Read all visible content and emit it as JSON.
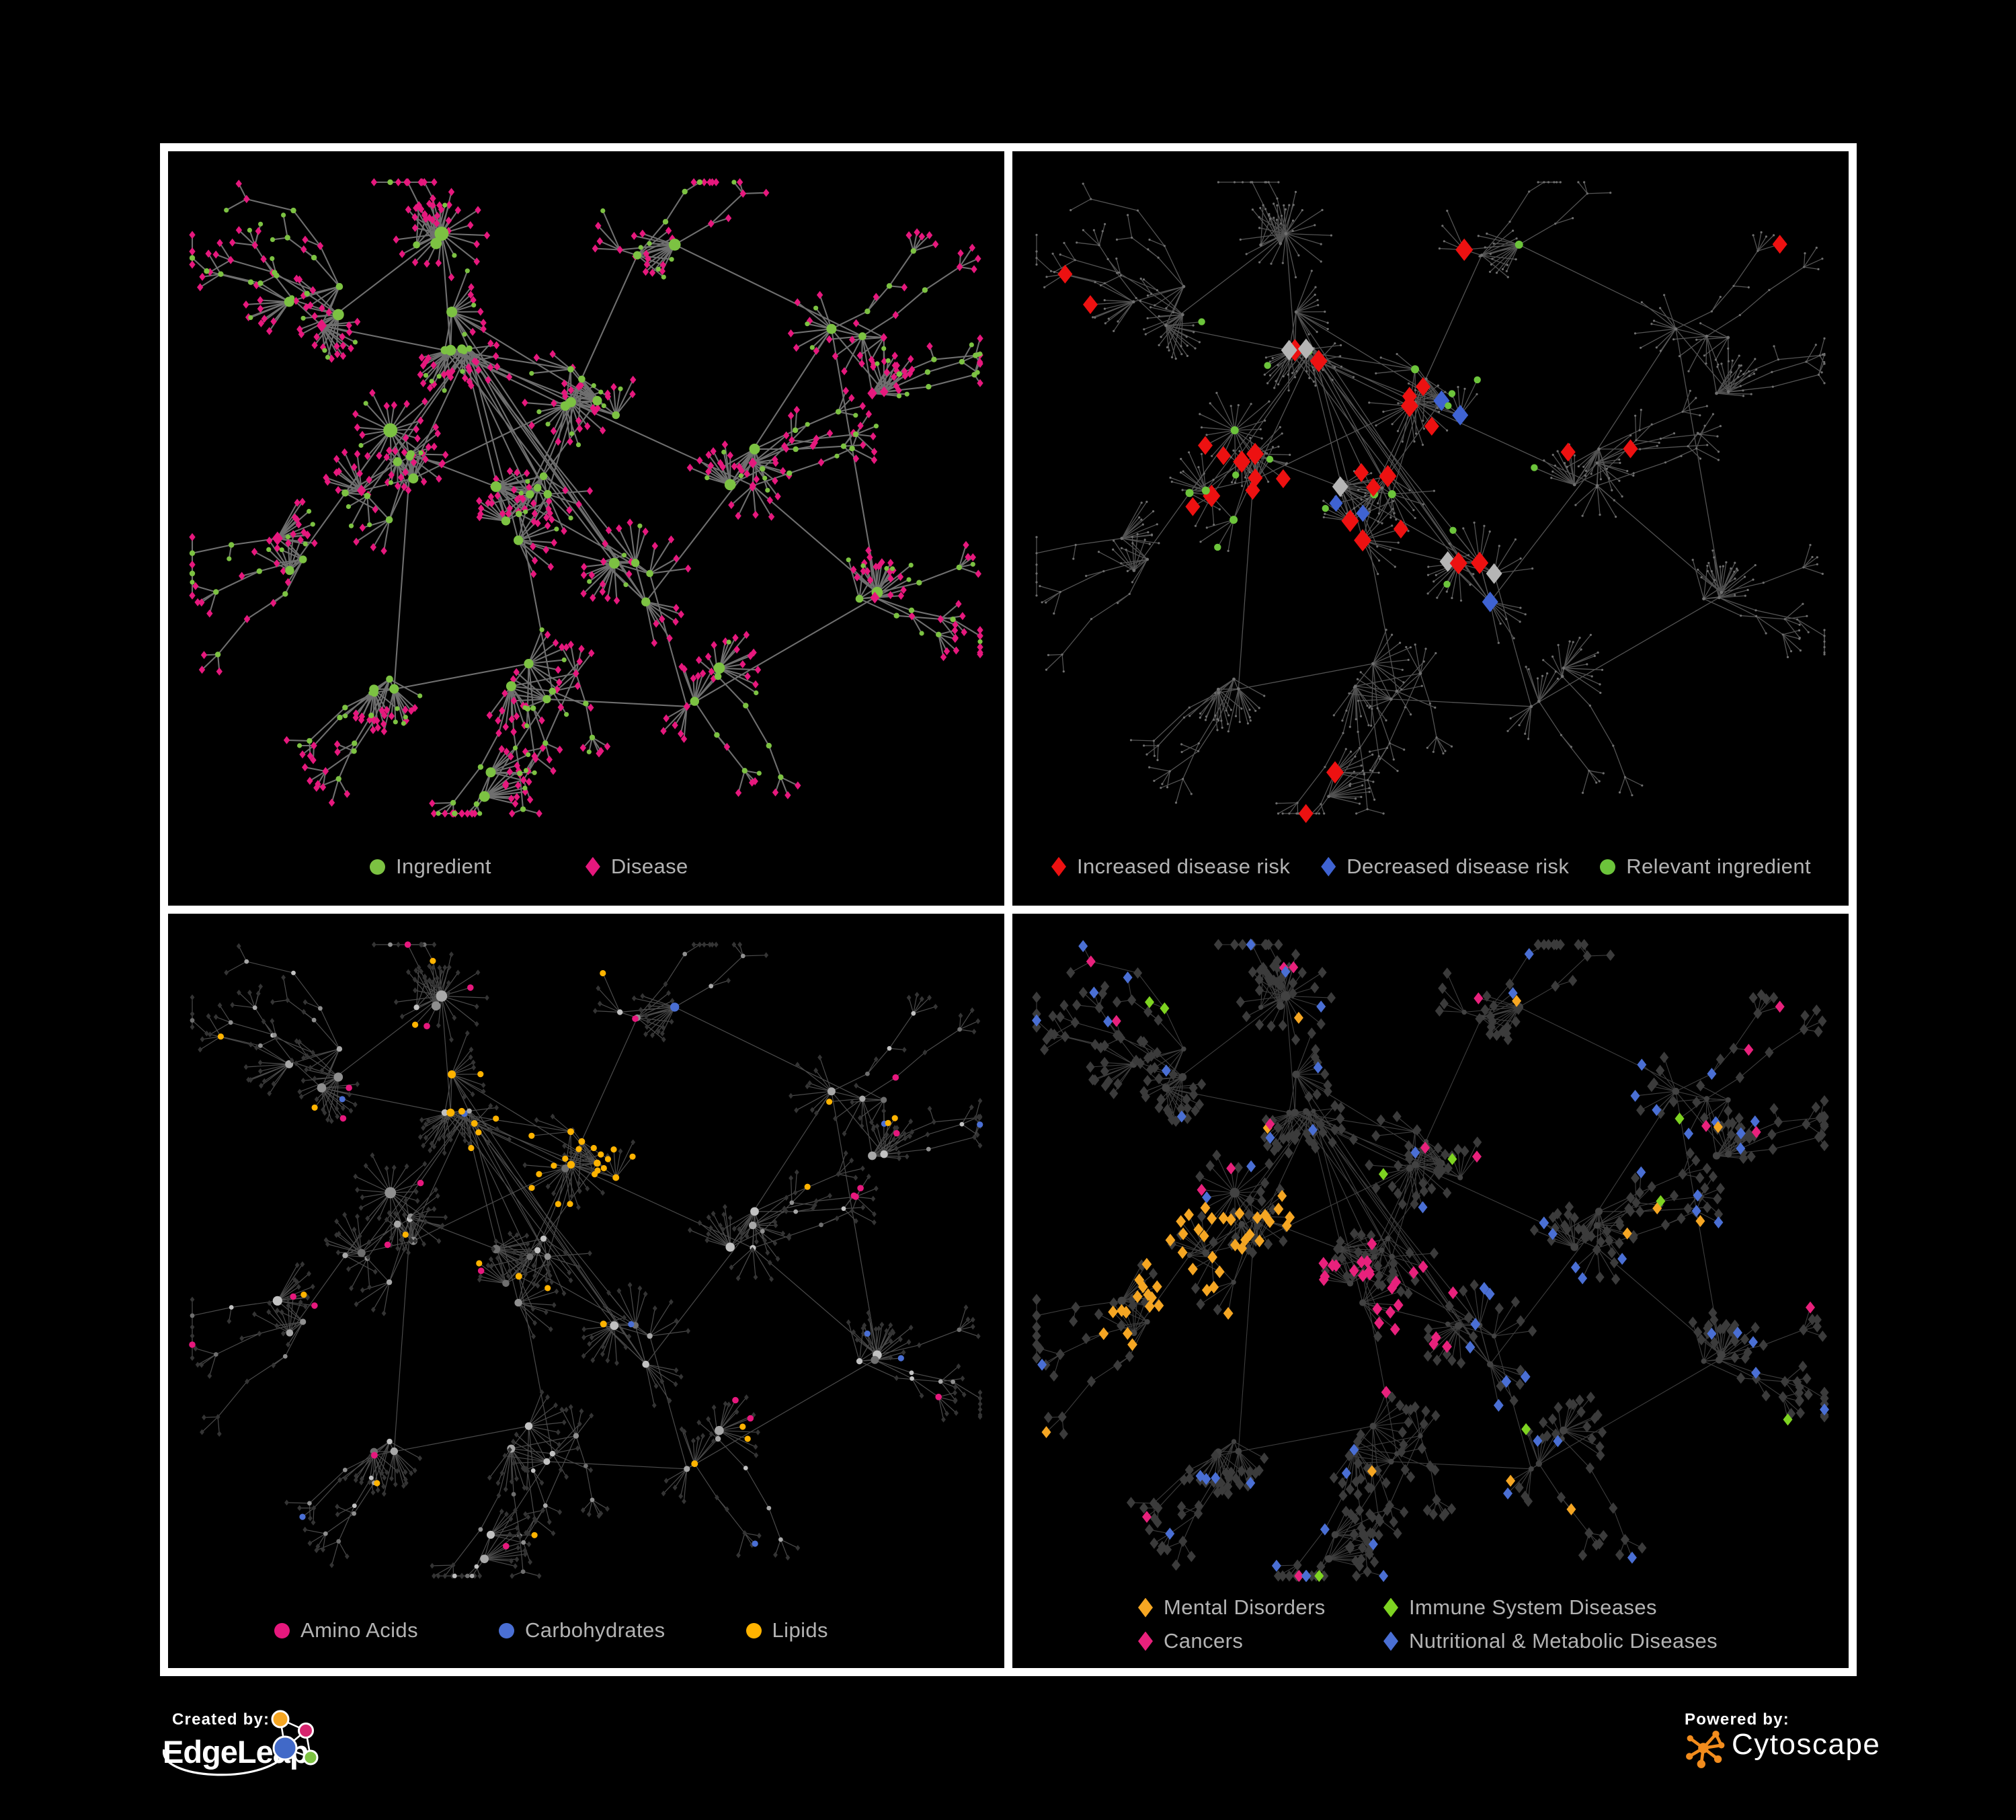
{
  "figure": {
    "background": "#000000",
    "panel_border": "#ffffff"
  },
  "panels": {
    "p1": {
      "name": "ingredient-disease-network",
      "legend": [
        {
          "label": "Ingredient",
          "shape": "circle",
          "color": "#7CC242"
        },
        {
          "label": "Disease",
          "shape": "diamond",
          "color": "#E6187D"
        }
      ]
    },
    "p2": {
      "name": "disease-risk-network",
      "legend": [
        {
          "label": "Increased disease risk",
          "shape": "diamond",
          "color": "#ED1111"
        },
        {
          "label": "Decreased disease risk",
          "shape": "diamond",
          "color": "#3F63D2"
        },
        {
          "label": "Relevant ingredient",
          "shape": "circle",
          "color": "#6CC43B"
        }
      ]
    },
    "p3": {
      "name": "compound-class-network",
      "legend": [
        {
          "label": "Amino Acids",
          "shape": "circle",
          "color": "#E6187D"
        },
        {
          "label": "Carbohydrates",
          "shape": "circle",
          "color": "#4A6FD4"
        },
        {
          "label": "Lipids",
          "shape": "circle",
          "color": "#FFB300"
        }
      ]
    },
    "p4": {
      "name": "disease-category-network",
      "legend": [
        {
          "label": "Mental Disorders",
          "shape": "diamond",
          "color": "#F5A623"
        },
        {
          "label": "Immune System Diseases",
          "shape": "diamond",
          "color": "#7ED321"
        },
        {
          "label": "Cancers",
          "shape": "diamond",
          "color": "#E8217C"
        },
        {
          "label": "Nutritional & Metabolic Diseases",
          "shape": "diamond",
          "color": "#4A6FD4"
        }
      ]
    }
  },
  "footer": {
    "created_by_label": "Created by:",
    "created_by_brand": "EdgeLeap",
    "powered_by_label": "Powered by:",
    "powered_by_brand": "Cytoscape",
    "edgeleap_logo_colors": {
      "orange": "#F5A623",
      "pink": "#D6246E",
      "blue": "#4169C8",
      "green": "#7DC242"
    },
    "cytoscape_logo_color": "#F28C1D"
  },
  "network": {
    "seed": 1337,
    "styles": {
      "p1": {
        "edge": {
          "color": "#757575",
          "width": 2.1,
          "opacity": 0.95
        },
        "ingredient": "#7CC242",
        "disease": "#E6187D"
      },
      "p2": {
        "edge": {
          "color": "#5c5c5c",
          "width": 1.3,
          "opacity": 0.9
        },
        "base": "#6f6f6f",
        "increased": "#ED1111",
        "decreased": "#3F63D2",
        "neutral": "#B5B5B5",
        "relevant": "#6CC43B"
      },
      "p3": {
        "edge": {
          "color": "#7d7d7d",
          "width": 1.2,
          "opacity": 0.6
        },
        "leaf": "#343434",
        "grays": [
          "#8f8f8f",
          "#a8a8a8",
          "#6f6f6f",
          "#c2c2c2"
        ],
        "amino": "#E6187D",
        "carb": "#4A6FD4",
        "lipid": "#FFB300"
      },
      "p4": {
        "edge": {
          "color": "#8a8a8a",
          "width": 1.1,
          "opacity": 0.45
        },
        "base": "#3b3b3b",
        "hub": "#424242",
        "mental": "#F5A623",
        "immune": "#7ED321",
        "cancer": "#E8217C",
        "nutri": "#4A6FD4"
      }
    }
  }
}
